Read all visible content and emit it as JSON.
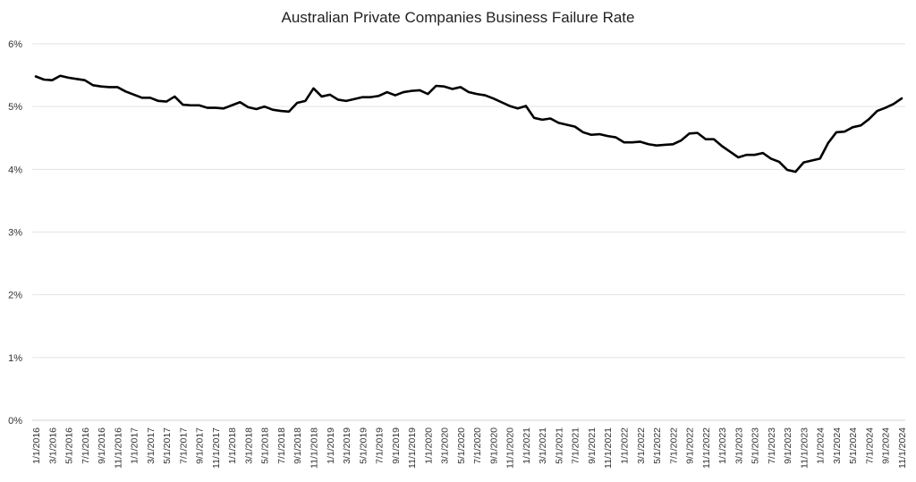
{
  "chart_data": {
    "type": "line",
    "title": "Australian Private Companies Business Failure Rate",
    "xlabel": "",
    "ylabel": "",
    "y_tick_labels": [
      "0%",
      "1%",
      "2%",
      "3%",
      "4%",
      "5%",
      "6%"
    ],
    "ylim": [
      0,
      6
    ],
    "grid": true,
    "legend": "none",
    "line_color": "#000000",
    "x_tick_labels": [
      "1/1/2016",
      "3/1/2016",
      "5/1/2016",
      "7/1/2016",
      "9/1/2016",
      "11/1/2016",
      "1/1/2017",
      "3/1/2017",
      "5/1/2017",
      "7/1/2017",
      "9/1/2017",
      "11/1/2017",
      "1/1/2018",
      "3/1/2018",
      "5/1/2018",
      "7/1/2018",
      "9/1/2018",
      "11/1/2018",
      "1/1/2019",
      "3/1/2019",
      "5/1/2019",
      "7/1/2019",
      "9/1/2019",
      "11/1/2019",
      "1/1/2020",
      "3/1/2020",
      "5/1/2020",
      "7/1/2020",
      "9/1/2020",
      "11/1/2020",
      "1/1/2021",
      "3/1/2021",
      "5/1/2021",
      "7/1/2021",
      "9/1/2021",
      "11/1/2021",
      "1/1/2022",
      "3/1/2022",
      "5/1/2022",
      "7/1/2022",
      "9/1/2022",
      "11/1/2022",
      "1/1/2023",
      "3/1/2023",
      "5/1/2023",
      "7/1/2023",
      "9/1/2023",
      "11/1/2023",
      "1/1/2024",
      "3/1/2024",
      "5/1/2024",
      "7/1/2024",
      "9/1/2024",
      "11/1/2024"
    ],
    "series": [
      {
        "values": [
          5.48,
          5.43,
          5.42,
          5.49,
          5.46,
          5.44,
          5.42,
          5.34,
          5.32,
          5.31,
          5.31,
          5.24,
          5.19,
          5.14,
          5.14,
          5.09,
          5.08,
          5.16,
          5.03,
          5.02,
          5.02,
          4.98,
          4.98,
          4.97,
          5.02,
          5.07,
          4.99,
          4.96,
          5.0,
          4.95,
          4.93,
          4.92,
          5.06,
          5.09,
          5.29,
          5.16,
          5.19,
          5.11,
          5.09,
          5.12,
          5.15,
          5.15,
          5.17,
          5.23,
          5.18,
          5.23,
          5.25,
          5.26,
          5.2,
          5.33,
          5.32,
          5.28,
          5.31,
          5.23,
          5.2,
          5.18,
          5.13,
          5.07,
          5.01,
          4.97,
          5.01,
          4.82,
          4.79,
          4.81,
          4.74,
          4.71,
          4.68,
          4.59,
          4.55,
          4.56,
          4.53,
          4.51,
          4.43,
          4.43,
          4.44,
          4.4,
          4.38,
          4.39,
          4.4,
          4.46,
          4.57,
          4.58,
          4.48,
          4.48,
          4.37,
          4.28,
          4.19,
          4.23,
          4.23,
          4.26,
          4.17,
          4.12,
          3.99,
          3.96,
          4.11,
          4.14,
          4.17,
          4.42,
          4.59,
          4.6,
          4.67,
          4.7,
          4.8,
          4.93,
          4.98,
          5.04,
          5.13
        ]
      }
    ]
  }
}
